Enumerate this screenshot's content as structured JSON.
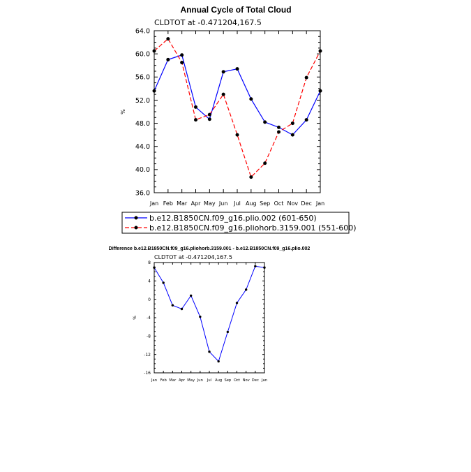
{
  "chart_data": [
    {
      "type": "line",
      "title": "Annual Cycle of Total Cloud",
      "subtitle": "CLDTOT at -0.471204,167.5",
      "ylabel": "%",
      "xlabel": "",
      "ylim": [
        36.0,
        64.0
      ],
      "yticks": [
        "64.0",
        "60.0",
        "56.0",
        "52.0",
        "48.0",
        "44.0",
        "40.0",
        "36.0"
      ],
      "ytick_values": [
        64,
        60,
        56,
        52,
        48,
        44,
        40,
        36
      ],
      "categories": [
        "Jan",
        "Feb",
        "Mar",
        "Apr",
        "May",
        "Jun",
        "Jul",
        "Aug",
        "Sep",
        "Oct",
        "Nov",
        "Dec",
        "Jan"
      ],
      "series": [
        {
          "name": "b.e12.B1850CN.f09_g16.plio.002 (601-650)",
          "color": "#0000ff",
          "dash": "solid",
          "values": [
            53.6,
            59.0,
            59.8,
            50.8,
            48.7,
            56.9,
            57.4,
            52.2,
            48.2,
            47.3,
            46.0,
            48.6,
            53.6
          ]
        },
        {
          "name": "b.e12.B1850CN.f09_g16.pliohorb.3159.001 (551-600)",
          "color": "#ff0000",
          "dash": "dashed",
          "values": [
            60.5,
            62.6,
            58.5,
            48.6,
            49.5,
            53.0,
            46.0,
            38.7,
            41.1,
            46.5,
            48.0,
            55.9,
            60.5
          ]
        }
      ],
      "legend": "below"
    },
    {
      "type": "line",
      "title": "Difference b.e12.B1850CN.f09_g16.pliohorb.3159.001 - b.e12.B1850CN.f09_g16.plio.002",
      "subtitle": "CLDTOT at -0.471204,167.5",
      "ylabel": "%",
      "xlabel": "",
      "ylim": [
        -16,
        8
      ],
      "yticks": [
        "8",
        "4",
        "0",
        "-4",
        "-8",
        "-12",
        "-16"
      ],
      "ytick_values": [
        8,
        4,
        0,
        -4,
        -8,
        -12,
        -16
      ],
      "categories": [
        "Jan",
        "Feb",
        "Mar",
        "Apr",
        "May",
        "Jun",
        "Jul",
        "Aug",
        "Sep",
        "Oct",
        "Nov",
        "Dec",
        "Jan"
      ],
      "series": [
        {
          "color": "#0000ff",
          "dash": "solid",
          "values": [
            6.9,
            3.6,
            -1.3,
            -2.1,
            0.8,
            -3.8,
            -11.4,
            -13.5,
            -7.1,
            -0.8,
            2.1,
            7.2,
            6.9
          ]
        }
      ]
    }
  ]
}
